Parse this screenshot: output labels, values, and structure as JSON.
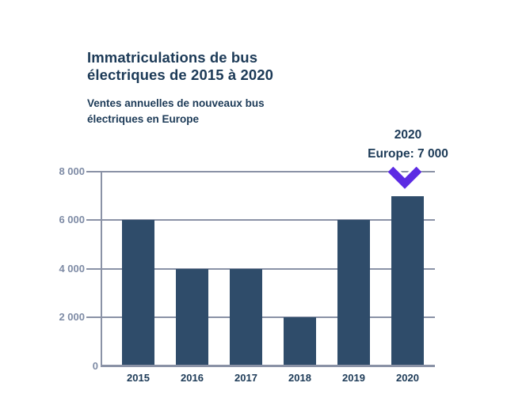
{
  "header": {
    "title": "Immatriculations de bus électriques de 2015 à 2020",
    "subtitle": "Ventes annuelles de nouveaux bus électriques en Europe"
  },
  "annotation": {
    "line1": "2020",
    "line2": "Europe: 7 000"
  },
  "chart_data": {
    "type": "bar",
    "title": "Immatriculations de bus électriques de 2015 à 2020",
    "subtitle": "Ventes annuelles de nouveaux bus électriques en Europe",
    "categories": [
      "2015",
      "2016",
      "2017",
      "2018",
      "2019",
      "2020"
    ],
    "values": [
      6000,
      4000,
      4000,
      2000,
      6000,
      7000
    ],
    "xlabel": "",
    "ylabel": "",
    "ylim": [
      0,
      8000
    ],
    "yticks": [
      {
        "value": 0,
        "label": "0"
      },
      {
        "value": 2000,
        "label": "2 000"
      },
      {
        "value": 4000,
        "label": "4 000"
      },
      {
        "value": 6000,
        "label": "6 000"
      },
      {
        "value": 8000,
        "label": "8 000"
      }
    ],
    "grid": true,
    "legend": false,
    "annotation": {
      "text_line1": "2020",
      "text_line2": "Europe: 7 000",
      "points_to_category": "2020",
      "arrow_icon": "chevron-down"
    }
  },
  "colors": {
    "navy_text": "#1c3a57",
    "bar_fill": "#2f4c6a",
    "grid_line": "#8a92a6",
    "ytick_text": "#7e8ba5",
    "arrow_purple": "#5c2be3",
    "background": "#ffffff"
  }
}
